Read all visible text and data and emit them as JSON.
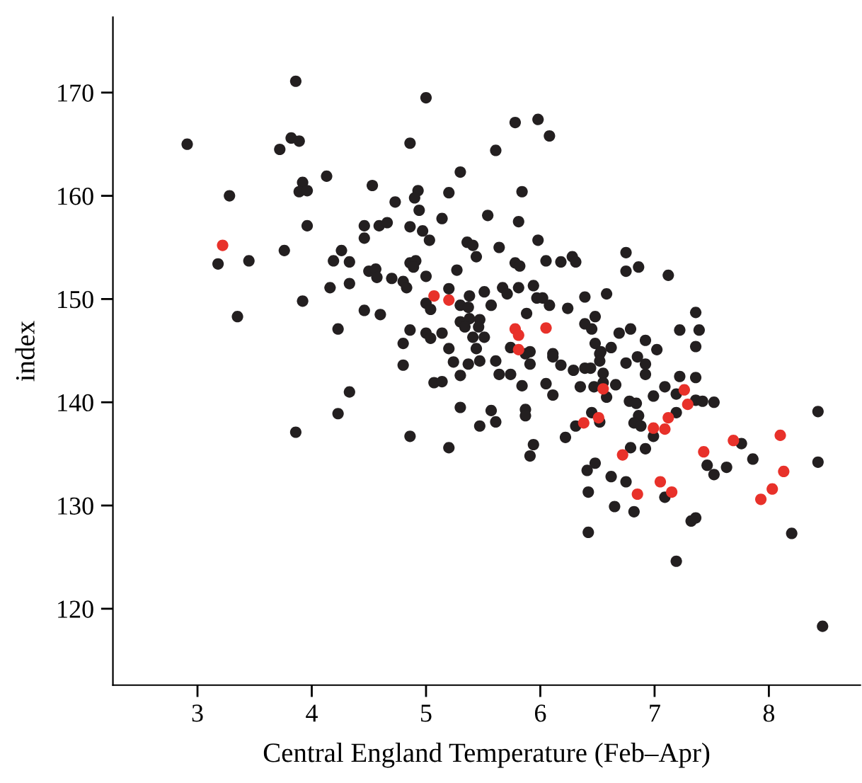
{
  "chart_data": {
    "type": "scatter",
    "xlabel": "Central England Temperature (Feb–Apr)",
    "ylabel": "index",
    "xlim": [
      2.26,
      8.8
    ],
    "ylim": [
      112.6,
      177.3
    ],
    "xticks": [
      3,
      4,
      5,
      6,
      7,
      8
    ],
    "yticks": [
      120,
      130,
      140,
      150,
      160,
      170
    ],
    "grid": false,
    "marker": "circle",
    "series": [
      {
        "color": "#231f20",
        "x": [
          3.86,
          5.0,
          2.91,
          3.82,
          3.89,
          3.72,
          4.86,
          5.61,
          4.13,
          5.3,
          3.92,
          3.89,
          3.96,
          3.28,
          4.53,
          4.73,
          4.93,
          4.9,
          5.2,
          4.94,
          5.54,
          5.14,
          3.96,
          4.46,
          4.59,
          4.66,
          4.86,
          4.97,
          4.46,
          5.03,
          5.36,
          5.41,
          5.64,
          5.44,
          3.18,
          3.45,
          3.76,
          4.26,
          4.19,
          4.33,
          4.5,
          4.56,
          4.57,
          4.7,
          4.86,
          4.91,
          4.89,
          4.8,
          4.83,
          5.0,
          5.27,
          4.16,
          4.33,
          3.92,
          5.2,
          5.38,
          5.51,
          5.57,
          5.67,
          5.0,
          5.04,
          5.3,
          5.37,
          4.46,
          4.6,
          3.35,
          5.3,
          5.38,
          5.47,
          5.34,
          5.46,
          4.86,
          5.0,
          5.14,
          5.04,
          4.23,
          4.8,
          5.2,
          5.44,
          5.41,
          5.51,
          5.78,
          5.98,
          6.08,
          5.84,
          5.81,
          5.98,
          5.78,
          5.82,
          6.05,
          6.18,
          6.28,
          6.31,
          6.75,
          6.75,
          6.86,
          7.12,
          5.71,
          5.81,
          5.94,
          5.97,
          6.02,
          6.08,
          6.24,
          6.39,
          6.58,
          5.88,
          6.39,
          6.48,
          6.45,
          6.69,
          6.79,
          6.92,
          7.02,
          7.36,
          7.22,
          7.39,
          7.36,
          6.48,
          6.62,
          6.53,
          5.74,
          5.91,
          6.11,
          4.33,
          4.23,
          3.86,
          4.8,
          5.24,
          5.37,
          5.47,
          5.61,
          5.64,
          5.3,
          5.07,
          5.14,
          5.3,
          5.57,
          5.61,
          5.47,
          4.86,
          5.2,
          5.74,
          5.87,
          5.91,
          5.84,
          5.87,
          5.87,
          5.94,
          5.91,
          6.11,
          6.18,
          6.29,
          6.39,
          6.44,
          6.52,
          6.52,
          6.05,
          6.11,
          6.35,
          6.47,
          6.85,
          6.92,
          6.92,
          6.75,
          6.55,
          6.55,
          6.66,
          6.58,
          6.45,
          6.52,
          6.31,
          6.22,
          6.78,
          6.84,
          6.86,
          6.82,
          6.88,
          6.99,
          7.09,
          7.19,
          7.22,
          7.36,
          7.19,
          6.99,
          7.36,
          7.42,
          7.52,
          6.79,
          6.92,
          6.41,
          6.48,
          6.42,
          6.62,
          6.75,
          6.65,
          6.82,
          7.09,
          7.32,
          7.36,
          6.42,
          7.19,
          7.46,
          7.52,
          7.63,
          7.86,
          7.76,
          8.43,
          8.43,
          8.2,
          8.47
        ],
        "values": [
          171.1,
          169.5,
          165.0,
          165.6,
          165.3,
          164.5,
          165.1,
          164.4,
          161.9,
          162.3,
          161.3,
          160.4,
          160.5,
          160.0,
          161.0,
          159.4,
          160.5,
          159.8,
          160.3,
          158.6,
          158.1,
          157.8,
          157.1,
          157.1,
          157.1,
          157.4,
          157.0,
          156.6,
          155.9,
          155.7,
          155.5,
          155.2,
          155.0,
          154.1,
          153.4,
          153.7,
          154.7,
          154.7,
          153.7,
          153.6,
          152.7,
          152.9,
          152.1,
          152.0,
          153.5,
          153.7,
          153.1,
          151.7,
          151.1,
          152.2,
          152.8,
          151.1,
          151.5,
          149.8,
          151.0,
          150.3,
          150.7,
          149.4,
          151.1,
          149.6,
          149.0,
          149.4,
          149.2,
          148.9,
          148.5,
          148.3,
          147.8,
          148.1,
          148.0,
          147.3,
          147.3,
          147.0,
          146.7,
          146.7,
          146.2,
          147.1,
          145.7,
          145.2,
          145.2,
          146.3,
          146.3,
          167.1,
          167.4,
          165.8,
          160.4,
          157.5,
          155.7,
          153.5,
          153.2,
          153.7,
          153.6,
          154.1,
          153.6,
          154.5,
          152.7,
          153.1,
          152.3,
          150.5,
          151.1,
          151.3,
          150.1,
          150.1,
          149.4,
          149.1,
          150.2,
          150.5,
          148.6,
          147.6,
          148.3,
          147.1,
          146.7,
          147.1,
          146.0,
          145.1,
          148.7,
          147.0,
          147.0,
          145.4,
          145.7,
          145.3,
          144.9,
          145.3,
          144.9,
          144.7,
          141.0,
          138.9,
          137.1,
          143.6,
          143.9,
          143.7,
          144.0,
          144.0,
          142.7,
          142.6,
          141.9,
          142.0,
          139.5,
          139.2,
          138.1,
          137.7,
          136.7,
          135.6,
          142.7,
          144.7,
          143.7,
          141.6,
          139.3,
          138.7,
          135.9,
          134.8,
          144.4,
          143.6,
          143.1,
          143.3,
          143.3,
          144.7,
          144.0,
          141.8,
          140.7,
          141.5,
          141.5,
          144.4,
          143.7,
          142.7,
          143.8,
          142.8,
          141.9,
          141.7,
          140.5,
          139.0,
          138.1,
          137.7,
          136.6,
          140.1,
          139.9,
          138.7,
          138.0,
          137.7,
          140.6,
          141.5,
          140.8,
          142.5,
          142.4,
          139.0,
          136.7,
          140.2,
          140.1,
          140.0,
          135.6,
          135.5,
          133.4,
          134.1,
          131.3,
          132.8,
          132.3,
          129.9,
          129.4,
          130.8,
          128.5,
          128.8,
          127.4,
          124.6,
          133.9,
          133.0,
          133.7,
          134.5,
          136.0,
          139.1,
          134.2,
          127.3,
          118.3
        ]
      },
      {
        "color": "#e8312a",
        "x": [
          3.22,
          5.07,
          5.2,
          5.78,
          5.81,
          6.05,
          5.81,
          6.55,
          6.38,
          6.51,
          6.99,
          7.09,
          7.12,
          7.26,
          7.29,
          6.72,
          6.85,
          7.05,
          7.15,
          7.43,
          7.69,
          8.1,
          8.13,
          8.03,
          7.93
        ],
        "values": [
          155.2,
          150.3,
          149.9,
          147.1,
          146.5,
          147.2,
          145.1,
          141.3,
          138.0,
          138.5,
          137.5,
          137.4,
          138.5,
          141.2,
          139.8,
          134.9,
          131.1,
          132.3,
          131.3,
          135.2,
          136.3,
          136.8,
          133.3,
          131.6,
          130.6
        ]
      }
    ]
  }
}
